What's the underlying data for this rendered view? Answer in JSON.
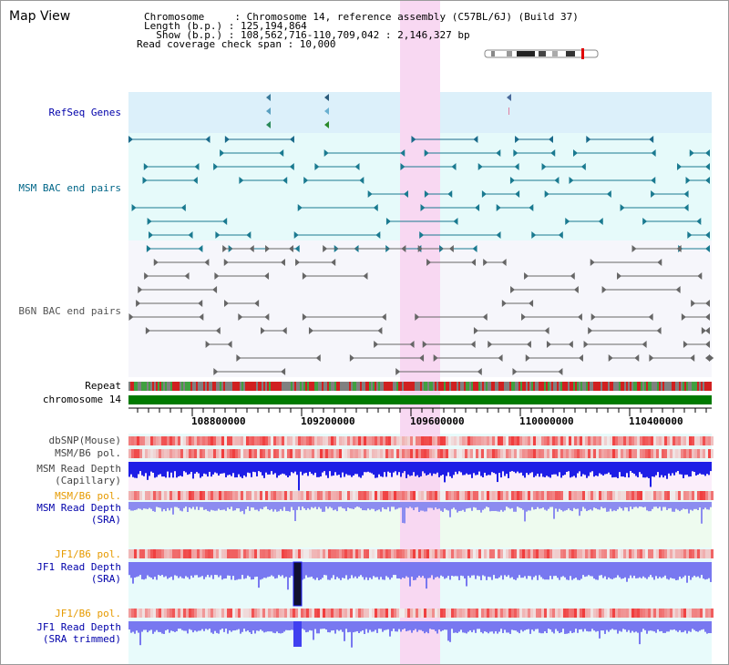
{
  "header": {
    "title": "Map View",
    "info_lines": [
      "Chromosome     : Chromosome 14, reference assembly (C57BL/6J) (Build 37)",
      "Length (b.p.) : 125,194,864",
      "  Show (b.p.) : 108,562,716-110,709,042 : 2,146,327 bp",
      "Read coverage check span : 10,000"
    ]
  },
  "tracks": {
    "refseq": {
      "label": "RefSeq Genes",
      "color": "#0000aa"
    },
    "msm_bac": {
      "label": "MSM BAC end pairs",
      "color": "#006688"
    },
    "b6n_bac": {
      "label": "B6N BAC end pairs",
      "color": "#555555"
    },
    "repeat": {
      "label": "Repeat",
      "color": "#000000"
    },
    "chromosome": {
      "label": "chromosome 14",
      "color": "#000000"
    },
    "dbsnp": {
      "label": "dbSNP(Mouse)",
      "color": "#444444"
    },
    "msm_b6_pol": {
      "label": "MSM/B6 pol.",
      "color": "#444444"
    },
    "msm_read_cap": {
      "label": "MSM Read Depth\n(Capillary)",
      "color": "#444444"
    },
    "msm_b6_pol2": {
      "label": "MSM/B6 pol.",
      "color": "#e69a00"
    },
    "msm_read_sra": {
      "label": "MSM Read Depth\n(SRA)",
      "color": "#0000aa"
    },
    "jf1_b6_pol": {
      "label": "JF1/B6 pol.",
      "color": "#e69a00"
    },
    "jf1_read_sra": {
      "label": "JF1 Read Depth\n(SRA)",
      "color": "#0000aa"
    },
    "jf1_b6_pol2": {
      "label": "JF1/B6 pol.",
      "color": "#e69a00"
    },
    "jf1_read_trim": {
      "label": "JF1 Read Depth\n(SRA trimmed)",
      "color": "#0000aa"
    }
  },
  "axis": {
    "ticks": [
      "108800000",
      "109200000",
      "109600000",
      "110000000",
      "110400000"
    ]
  },
  "colors": {
    "highlight": "#f8d8f2",
    "refseq_bg": "#dcf0fa",
    "msm_bg": "#e6fafa",
    "chromosome": "#007a00",
    "depth_blue": "#1e1ee6",
    "depth_light": "#7878f0",
    "pol_red": "#f03c3c"
  }
}
